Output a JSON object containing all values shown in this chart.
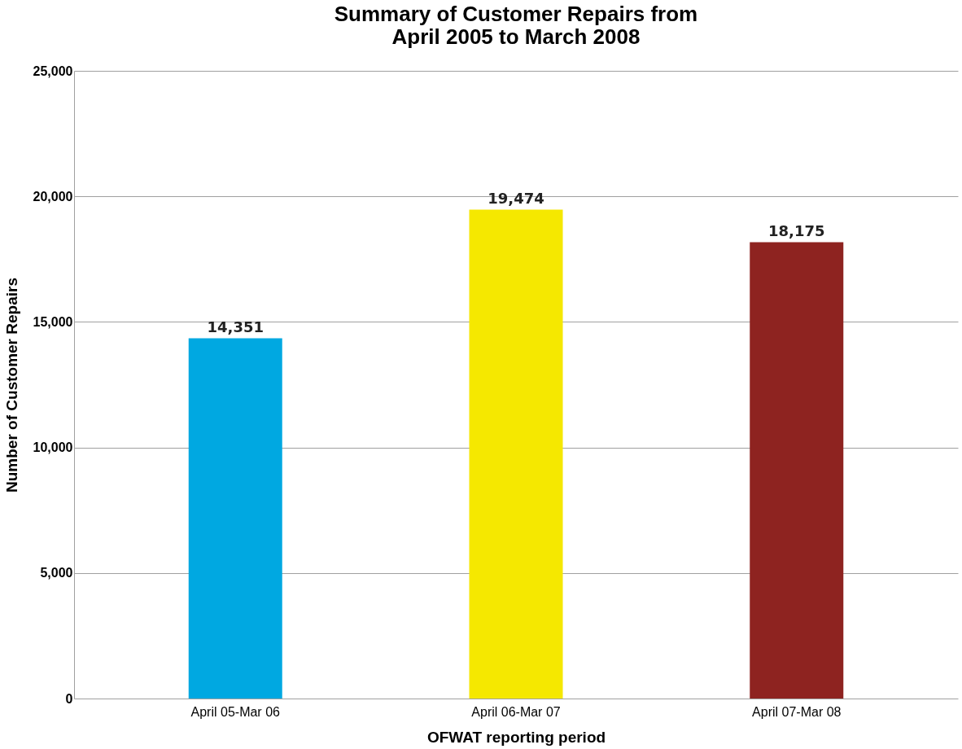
{
  "chart_data": {
    "type": "bar",
    "title": [
      "Summary of Customer Repairs from",
      "April 2005 to March 2008"
    ],
    "xlabel": "OFWAT reporting period",
    "ylabel": "Number of Customer Repairs",
    "categories": [
      "April 05-Mar 06",
      "April 06-Mar 07",
      "April 07-Mar 08"
    ],
    "values": [
      14351,
      19474,
      18175
    ],
    "colors": [
      "#00a8e1",
      "#f5e800",
      "#8e2320"
    ],
    "ylim": [
      0,
      25000
    ],
    "yticks": [
      {
        "value": 0,
        "label": "0"
      },
      {
        "value": 5000,
        "label": "5,000"
      },
      {
        "value": 10000,
        "label": "10,000"
      },
      {
        "value": 15000,
        "label": "15,000"
      },
      {
        "value": 20000,
        "label": "20,000"
      },
      {
        "value": 25000,
        "label": "25,000"
      }
    ],
    "value_labels": [
      "14,351",
      "19,474",
      "18,175"
    ],
    "grid": "y"
  }
}
